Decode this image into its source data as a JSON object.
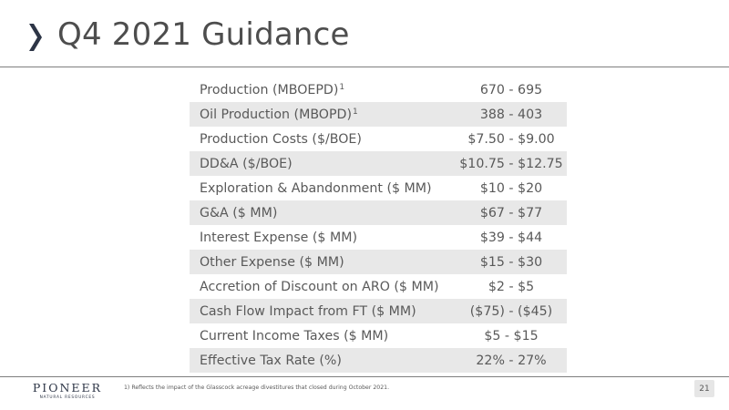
{
  "header": {
    "title": "Q4 2021 Guidance"
  },
  "guidance": {
    "rows": [
      {
        "label": "Production (MBOEPD)",
        "sup": "1",
        "value": "670 - 695"
      },
      {
        "label": "Oil Production (MBOPD)",
        "sup": "1",
        "value": "388 - 403"
      },
      {
        "label": "Production Costs ($/BOE)",
        "sup": "",
        "value": "$7.50 - $9.00"
      },
      {
        "label": "DD&A ($/BOE)",
        "sup": "",
        "value": "$10.75 - $12.75"
      },
      {
        "label": "Exploration & Abandonment ($ MM)",
        "sup": "",
        "value": "$10 - $20"
      },
      {
        "label": "G&A ($ MM)",
        "sup": "",
        "value": "$67 - $77"
      },
      {
        "label": "Interest Expense ($ MM)",
        "sup": "",
        "value": "$39 - $44"
      },
      {
        "label": "Other Expense ($ MM)",
        "sup": "",
        "value": "$15 - $30"
      },
      {
        "label": "Accretion of Discount on ARO ($ MM)",
        "sup": "",
        "value": "$2 - $5"
      },
      {
        "label": "Cash Flow Impact from FT ($ MM)",
        "sup": "",
        "value": "($75) - ($45)"
      },
      {
        "label": "Current Income Taxes ($ MM)",
        "sup": "",
        "value": "$5 - $15"
      },
      {
        "label": "Effective Tax Rate (%)",
        "sup": "",
        "value": "22% - 27%"
      }
    ]
  },
  "footer": {
    "logo_main": "PIONEER",
    "logo_sub": "NATURAL RESOURCES",
    "footnote": "1) Reflects the impact of the Glasscock acreage divestitures that closed during October 2021.",
    "page_number": "21"
  },
  "colors": {
    "accent": "#2d3546",
    "row_stripe": "#e8e8e8",
    "text": "#595959"
  },
  "icons": {
    "title_marker": "chevron-right-icon"
  }
}
